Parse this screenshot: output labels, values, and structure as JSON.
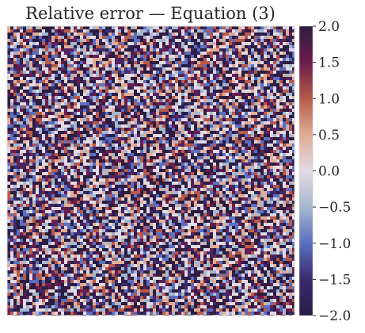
{
  "chart_data": {
    "type": "heatmap",
    "title": "Relative error — Equation (3)",
    "xlabel": "",
    "ylabel": "",
    "axes_ticks_visible": false,
    "grid": false,
    "field_description_hidden": true,
    "colorbar": {
      "position": "right",
      "colormap": "twilight_shifted",
      "vmin": -2.0,
      "vmax": 2.0,
      "ticks": [
        2.0,
        1.5,
        1.0,
        0.5,
        0.0,
        -0.5,
        -1.0,
        -1.5,
        -2.0
      ],
      "tick_labels": [
        "2.0",
        "1.5",
        "1.0",
        "0.5",
        "0.0",
        "−0.5",
        "−1.0",
        "−1.5",
        "−2.0"
      ]
    },
    "value_pattern": "noisy fine-grained field alternating between strongly positive and strongly negative values with near-zero contour lines"
  },
  "colors": {
    "title": "#262626",
    "tick_text": "#262626",
    "map_max": "#2d1e3e",
    "map_pos_high": "#6b1d4d",
    "map_pos_mid": "#b75a4a",
    "map_pos_low": "#e0ad96",
    "map_zero": "#e2d9e2",
    "map_neg_low": "#a6b7d0",
    "map_neg_mid": "#5a6fc0",
    "map_neg_high": "#3a2a6e",
    "map_min": "#2a1c45"
  }
}
